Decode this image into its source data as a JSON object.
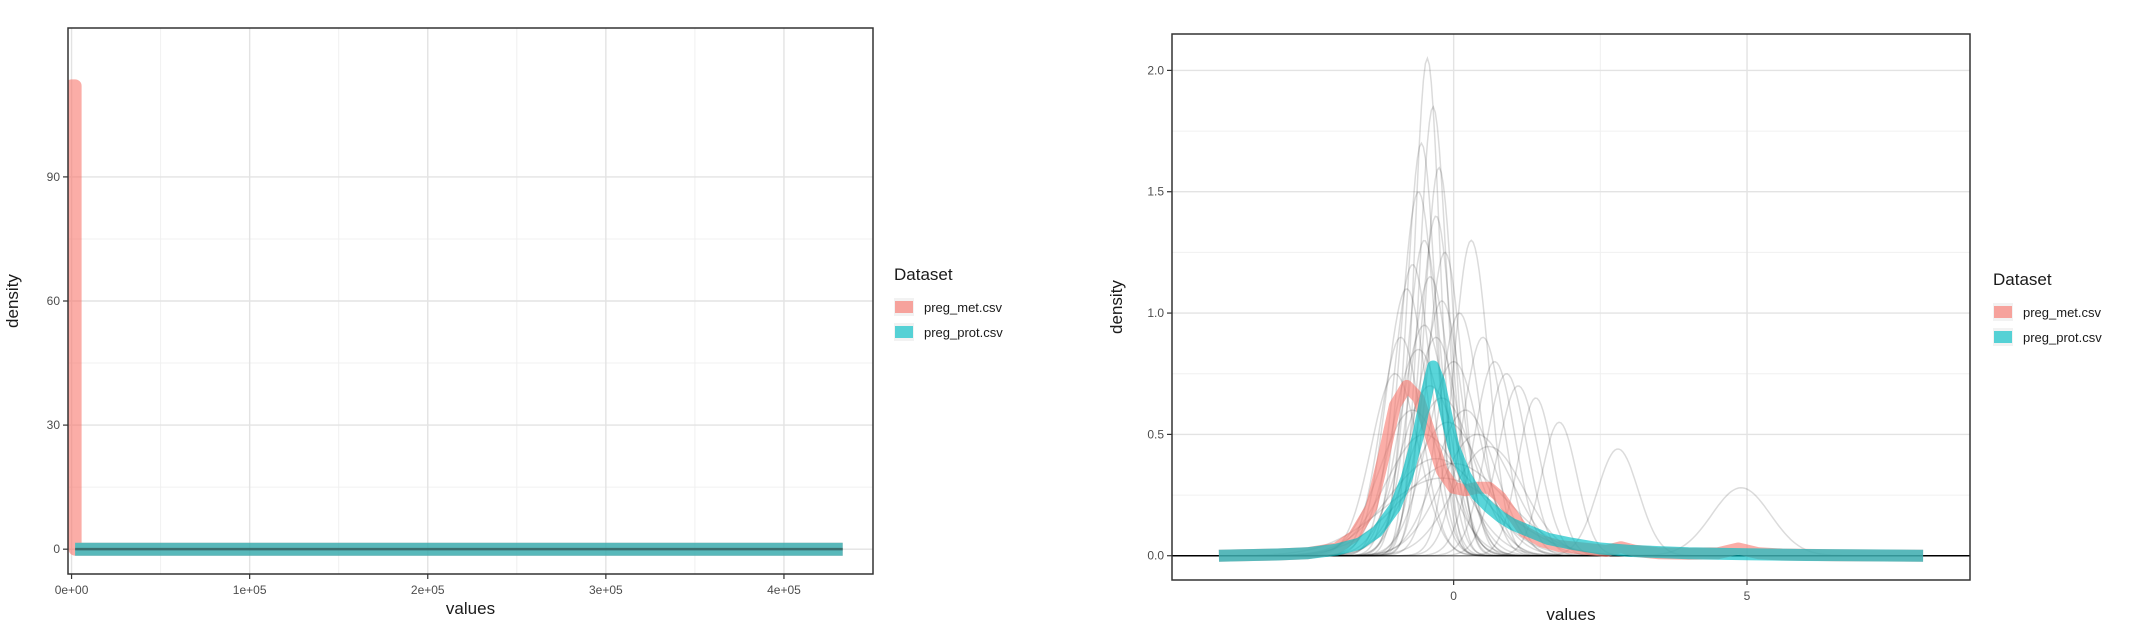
{
  "chart_data": [
    {
      "type": "line",
      "xlabel": "values",
      "ylabel": "density",
      "xlim": [
        -2000,
        450000
      ],
      "ylim": [
        -6,
        126
      ],
      "x_ticks": [
        0,
        100000,
        200000,
        300000,
        400000
      ],
      "x_tick_labels": [
        "0e+00",
        "1e+05",
        "2e+05",
        "3e+05",
        "4e+05"
      ],
      "y_ticks": [
        0,
        30,
        60,
        90
      ],
      "y_tick_labels": [
        "0",
        "30",
        "60",
        "90"
      ],
      "grid": true,
      "legend": {
        "title": "Dataset",
        "position": "right",
        "items": [
          {
            "label": "preg_met.csv",
            "color": "#F8766D"
          },
          {
            "label": "preg_prot.csv",
            "color": "#00BFC4"
          }
        ]
      },
      "series": [
        {
          "name": "preg_met.csv",
          "color": "#F8766D",
          "x": [
            0,
            0,
            2000,
            2000,
            433000
          ],
          "y": [
            0,
            112,
            112,
            0,
            0
          ]
        },
        {
          "name": "preg_prot.csv",
          "color": "#00BFC4",
          "x": [
            2000,
            433000
          ],
          "y": [
            0,
            0
          ]
        }
      ]
    },
    {
      "type": "line",
      "xlabel": "values",
      "ylabel": "density",
      "xlim": [
        -4.8,
        8.8
      ],
      "ylim": [
        -0.1,
        2.15
      ],
      "x_ticks": [
        0,
        5
      ],
      "x_tick_labels": [
        "0",
        "5"
      ],
      "y_ticks": [
        0,
        0.5,
        1,
        1.5,
        2
      ],
      "y_tick_labels": [
        "0.0",
        "0.5",
        "1.0",
        "1.5",
        "2.0"
      ],
      "grid": true,
      "legend": {
        "title": "Dataset",
        "position": "right",
        "items": [
          {
            "label": "preg_met.csv",
            "color": "#F8766D"
          },
          {
            "label": "preg_prot.csv",
            "color": "#00BFC4"
          }
        ]
      },
      "background_curves": [
        {
          "mu": -0.45,
          "sd": 0.22,
          "peak": 2.05
        },
        {
          "mu": -0.35,
          "sd": 0.24,
          "peak": 1.85
        },
        {
          "mu": -0.55,
          "sd": 0.25,
          "peak": 1.7
        },
        {
          "mu": -0.25,
          "sd": 0.25,
          "peak": 1.6
        },
        {
          "mu": -0.6,
          "sd": 0.3,
          "peak": 1.5
        },
        {
          "mu": -0.3,
          "sd": 0.28,
          "peak": 1.4
        },
        {
          "mu": -0.5,
          "sd": 0.3,
          "peak": 1.3
        },
        {
          "mu": -0.15,
          "sd": 0.3,
          "peak": 1.25
        },
        {
          "mu": -0.7,
          "sd": 0.32,
          "peak": 1.2
        },
        {
          "mu": -0.4,
          "sd": 0.35,
          "peak": 1.15
        },
        {
          "mu": 0.3,
          "sd": 0.3,
          "peak": 1.3
        },
        {
          "mu": -0.8,
          "sd": 0.35,
          "peak": 1.1
        },
        {
          "mu": -0.2,
          "sd": 0.35,
          "peak": 1.05
        },
        {
          "mu": 0.1,
          "sd": 0.35,
          "peak": 1.0
        },
        {
          "mu": -0.5,
          "sd": 0.4,
          "peak": 0.95
        },
        {
          "mu": -0.9,
          "sd": 0.35,
          "peak": 0.9
        },
        {
          "mu": 0.5,
          "sd": 0.35,
          "peak": 0.9
        },
        {
          "mu": -0.3,
          "sd": 0.4,
          "peak": 0.9
        },
        {
          "mu": 0.7,
          "sd": 0.35,
          "peak": 0.8
        },
        {
          "mu": -0.6,
          "sd": 0.45,
          "peak": 0.85
        },
        {
          "mu": 0.0,
          "sd": 0.45,
          "peak": 0.8
        },
        {
          "mu": -1.0,
          "sd": 0.4,
          "peak": 0.75
        },
        {
          "mu": 0.9,
          "sd": 0.35,
          "peak": 0.75
        },
        {
          "mu": -0.4,
          "sd": 0.5,
          "peak": 0.7
        },
        {
          "mu": 1.1,
          "sd": 0.35,
          "peak": 0.7
        },
        {
          "mu": 1.4,
          "sd": 0.3,
          "peak": 0.65
        },
        {
          "mu": -0.2,
          "sd": 0.55,
          "peak": 0.65
        },
        {
          "mu": 0.2,
          "sd": 0.5,
          "peak": 0.6
        },
        {
          "mu": -0.7,
          "sd": 0.55,
          "peak": 0.6
        },
        {
          "mu": -0.1,
          "sd": 0.6,
          "peak": 0.55
        },
        {
          "mu": 0.4,
          "sd": 0.6,
          "peak": 0.5
        },
        {
          "mu": -0.5,
          "sd": 0.65,
          "peak": 0.5
        },
        {
          "mu": -0.3,
          "sd": 0.8,
          "peak": 0.4
        },
        {
          "mu": 0.0,
          "sd": 0.9,
          "peak": 0.38
        },
        {
          "mu": -0.2,
          "sd": 1.0,
          "peak": 0.32
        },
        {
          "mu": 0.6,
          "sd": 0.6,
          "peak": 0.45
        },
        {
          "mu": 1.8,
          "sd": 0.3,
          "peak": 0.55
        },
        {
          "mu": 2.8,
          "sd": 0.35,
          "peak": 0.44
        },
        {
          "mu": 4.9,
          "sd": 0.5,
          "peak": 0.28
        }
      ],
      "series": [
        {
          "name": "preg_met.csv",
          "color": "#F8766D",
          "x": [
            -4.0,
            -3.0,
            -2.5,
            -2.0,
            -1.7,
            -1.4,
            -1.2,
            -1.0,
            -0.8,
            -0.6,
            -0.4,
            -0.2,
            0.0,
            0.2,
            0.4,
            0.6,
            0.8,
            1.0,
            1.2,
            1.5,
            1.8,
            2.2,
            2.6,
            2.85,
            3.1,
            3.5,
            4.0,
            4.5,
            4.85,
            5.2,
            5.6,
            6.5,
            8.0
          ],
          "y": [
            0.0,
            0.005,
            0.01,
            0.03,
            0.08,
            0.2,
            0.4,
            0.62,
            0.7,
            0.65,
            0.5,
            0.35,
            0.28,
            0.27,
            0.28,
            0.28,
            0.24,
            0.17,
            0.1,
            0.06,
            0.04,
            0.03,
            0.02,
            0.035,
            0.02,
            0.01,
            0.008,
            0.01,
            0.03,
            0.01,
            0.005,
            0.002,
            0.0
          ]
        },
        {
          "name": "preg_prot.csv",
          "color": "#00BFC4",
          "x": [
            -4.0,
            -3.0,
            -2.5,
            -2.0,
            -1.6,
            -1.3,
            -1.0,
            -0.8,
            -0.6,
            -0.45,
            -0.35,
            -0.25,
            -0.1,
            0.0,
            0.2,
            0.4,
            0.6,
            0.8,
            1.0,
            1.3,
            1.6,
            2.0,
            2.5,
            3.0,
            3.5,
            4.0,
            5.0,
            6.0,
            8.0
          ],
          "y": [
            0.0,
            0.005,
            0.01,
            0.025,
            0.05,
            0.1,
            0.2,
            0.32,
            0.5,
            0.68,
            0.78,
            0.72,
            0.55,
            0.45,
            0.33,
            0.25,
            0.2,
            0.16,
            0.13,
            0.1,
            0.07,
            0.05,
            0.03,
            0.02,
            0.015,
            0.01,
            0.006,
            0.003,
            0.0
          ]
        }
      ]
    }
  ]
}
